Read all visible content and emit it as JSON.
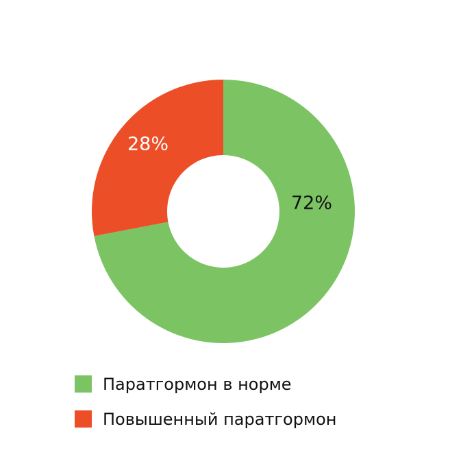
{
  "chart_data": {
    "type": "pie",
    "donut": true,
    "categories": [
      "Паратгормон в норме",
      "Повышенный паратгормон"
    ],
    "values": [
      72,
      28
    ],
    "value_labels": [
      "72%",
      "28%"
    ],
    "colors": [
      "#7cc363",
      "#ec4e27"
    ]
  }
}
